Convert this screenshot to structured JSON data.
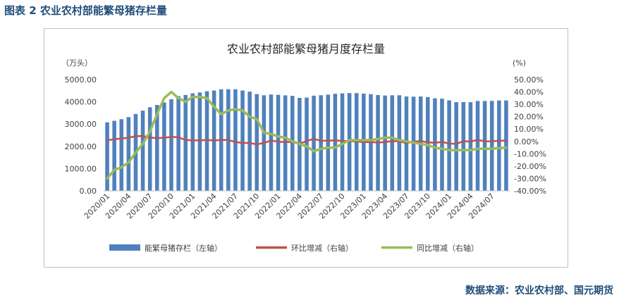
{
  "figure_title": "图表 2  农业农村部能繁母猪存栏量",
  "source": "数据来源：农业农村部、国元期货",
  "chart_data": {
    "type": "bar",
    "title": "农业农村部能繁母猪月度存栏量",
    "y_left_label": "（万头）",
    "y_right_label": "(%)",
    "y_left_lim": [
      0,
      5000
    ],
    "y_left_ticks": [
      "0.00",
      "1000.00",
      "2000.00",
      "3000.00",
      "4000.00",
      "5000.00"
    ],
    "y_right_lim": [
      -40,
      50
    ],
    "y_right_ticks": [
      "-40.00%",
      "-30.00%",
      "-20.00%",
      "-10.00%",
      "0.00%",
      "10.00%",
      "20.00%",
      "30.00%",
      "40.00%",
      "50.00%"
    ],
    "x_tick_labels": [
      "2020/01",
      "2020/04",
      "2020/07",
      "2020/10",
      "2021/01",
      "2021/04",
      "2021/07",
      "2021/10",
      "2022/01",
      "2022/04",
      "2022/07",
      "2022/10",
      "2023/01",
      "2023/04",
      "2023/07",
      "2023/10",
      "2024/01",
      "2024/04",
      "2024/07"
    ],
    "categories": [
      "2020/01",
      "2020/02",
      "2020/03",
      "2020/04",
      "2020/05",
      "2020/06",
      "2020/07",
      "2020/08",
      "2020/09",
      "2020/10",
      "2020/11",
      "2020/12",
      "2021/01",
      "2021/02",
      "2021/03",
      "2021/04",
      "2021/05",
      "2021/06",
      "2021/07",
      "2021/08",
      "2021/09",
      "2021/10",
      "2021/11",
      "2021/12",
      "2022/01",
      "2022/02",
      "2022/03",
      "2022/04",
      "2022/05",
      "2022/06",
      "2022/07",
      "2022/08",
      "2022/09",
      "2022/10",
      "2022/11",
      "2022/12",
      "2023/01",
      "2023/02",
      "2023/03",
      "2023/04",
      "2023/05",
      "2023/06",
      "2023/07",
      "2023/08",
      "2023/09",
      "2023/10",
      "2023/11",
      "2023/12",
      "2024/01",
      "2024/02",
      "2024/03",
      "2024/04",
      "2024/05",
      "2024/06",
      "2024/07",
      "2024/08",
      "2024/09"
    ],
    "series": [
      {
        "name": "能繁母猪存栏（左轴）",
        "type": "bar",
        "axis": "left",
        "color": "#4f81bd",
        "values": [
          3080,
          3146,
          3219,
          3315,
          3453,
          3606,
          3757,
          3859,
          3970,
          4118,
          4256,
          4308,
          4383,
          4420,
          4475,
          4510,
          4564,
          4567,
          4564,
          4510,
          4459,
          4348,
          4296,
          4329,
          4315,
          4291,
          4268,
          4177,
          4192,
          4277,
          4298,
          4324,
          4362,
          4379,
          4394,
          4390,
          4368,
          4343,
          4305,
          4284,
          4295,
          4296,
          4241,
          4231,
          4241,
          4210,
          4158,
          4142,
          4067,
          3986,
          3992,
          3986,
          4039,
          4038,
          4042,
          4062,
          4062
        ]
      },
      {
        "name": "环比增减（右轴）",
        "type": "line",
        "axis": "right",
        "color": "#c0504d",
        "values": [
          0.9,
          1.8,
          2.3,
          3.0,
          4.2,
          4.4,
          3.0,
          2.7,
          2.9,
          3.7,
          3.3,
          1.2,
          0.9,
          0.8,
          1.2,
          0.7,
          1.2,
          1.1,
          -0.5,
          -1.2,
          -1.3,
          -2.4,
          -1.2,
          0.8,
          -0.3,
          -0.6,
          -0.5,
          -2.0,
          0.4,
          2.0,
          0.5,
          0.6,
          0.9,
          0.4,
          0.3,
          -0.1,
          -0.5,
          -0.6,
          -0.9,
          -0.5,
          0.3,
          0.0,
          -1.3,
          -0.2,
          0.2,
          -0.7,
          -1.2,
          -0.4,
          -1.8,
          -2.0,
          0.2,
          -0.2,
          1.3,
          -0.0,
          0.1,
          0.5,
          0.6
        ]
      },
      {
        "name": "同比增减（右轴）",
        "type": "line",
        "axis": "right",
        "color": "#9bbb59",
        "values": [
          -30.0,
          -23.0,
          -21.0,
          -17.0,
          -9.0,
          -2.0,
          8.0,
          22.0,
          35.0,
          40.0,
          35.0,
          32.0,
          36.0,
          36.0,
          35.0,
          28.0,
          22.0,
          25.0,
          26.0,
          25.0,
          20.0,
          18.0,
          7.0,
          6.0,
          4.0,
          3.0,
          0.0,
          -2.0,
          -4.0,
          -8.0,
          -6.0,
          -5.0,
          -5.0,
          -2.0,
          1.0,
          1.0,
          1.0,
          1.0,
          2.0,
          3.0,
          3.0,
          1.0,
          0.0,
          -1.0,
          -2.0,
          -3.0,
          -5.0,
          -6.0,
          -7.0,
          -7.0,
          -7.0,
          -7.0,
          -6.0,
          -6.0,
          -6.0,
          -5.5,
          -5.0
        ]
      }
    ],
    "grid": false,
    "legend_position": "bottom"
  }
}
